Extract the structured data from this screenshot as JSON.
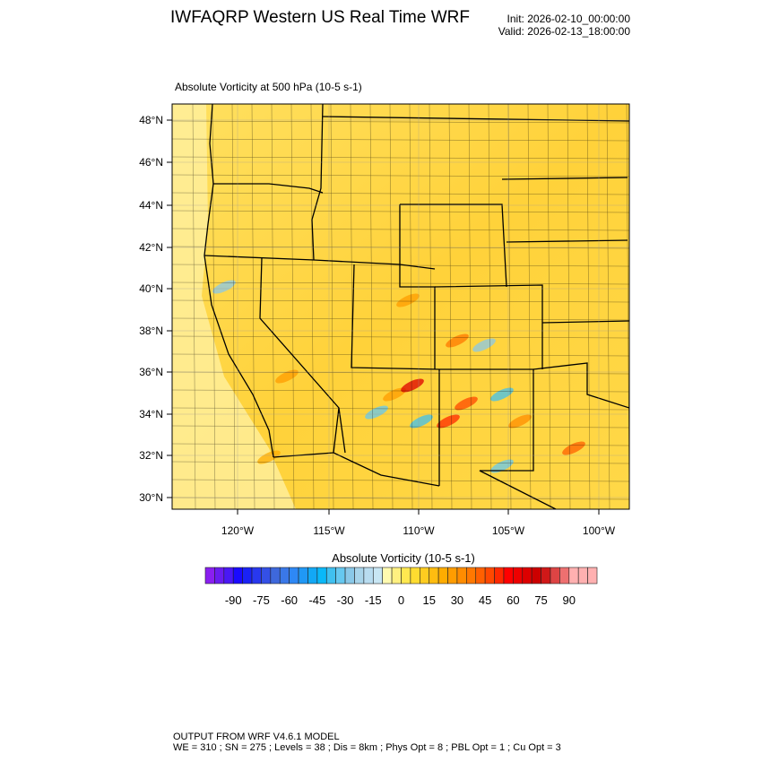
{
  "header": {
    "title": "IWFAQRP Western US Real Time WRF",
    "init": "Init: 2026-02-10_00:00:00",
    "valid": "Valid: 2026-02-13_18:00:00"
  },
  "map": {
    "subtitle": "Absolute Vorticity at 500 hPa   (10-5 s-1)",
    "lat_labels": [
      "48°N",
      "46°N",
      "44°N",
      "42°N",
      "40°N",
      "38°N",
      "36°N",
      "34°N",
      "32°N",
      "30°N"
    ],
    "lon_labels": [
      "120°W",
      "115°W",
      "110°W",
      "105°W",
      "100°W"
    ],
    "background_color": "#ffd84a"
  },
  "colorbar": {
    "title": "Absolute Vorticity  (10-5 s-1)",
    "labels": [
      "-90",
      "-75",
      "-60",
      "-45",
      "-30",
      "-15",
      "0",
      "15",
      "30",
      "45",
      "60",
      "75",
      "90"
    ],
    "levels_min": -100,
    "levels_max": 100,
    "levels_step": 5,
    "colors": [
      "#8a1ff0",
      "#6a1cf0",
      "#4a18f5",
      "#1a0aff",
      "#1a22f5",
      "#2838ee",
      "#3450e6",
      "#3e68dc",
      "#3a78e8",
      "#2e88f5",
      "#2098f5",
      "#12a8f5",
      "#0ab8f8",
      "#40c0f0",
      "#66c8f0",
      "#8ac8e8",
      "#a8d4ea",
      "#b8dcf0",
      "#c8e6f4",
      "#fffab0",
      "#fff080",
      "#ffe850",
      "#ffdc30",
      "#ffcc20",
      "#ffbc10",
      "#ffac00",
      "#ff9c00",
      "#ff8c00",
      "#ff7800",
      "#ff6000",
      "#ff4800",
      "#ff2800",
      "#ff0000",
      "#ee0000",
      "#dd0000",
      "#cc0000",
      "#d01818",
      "#dd4444",
      "#ee7070",
      "#ffb0b0",
      "#ffb0b0",
      "#ffb0b0"
    ]
  },
  "footer": {
    "line1": "OUTPUT FROM WRF V4.6.1 MODEL",
    "line2": "WE = 310 ; SN = 275 ; Levels = 38 ; Dis = 8km ; Phys Opt = 8 ; PBL Opt = 1 ; Cu Opt = 3"
  }
}
